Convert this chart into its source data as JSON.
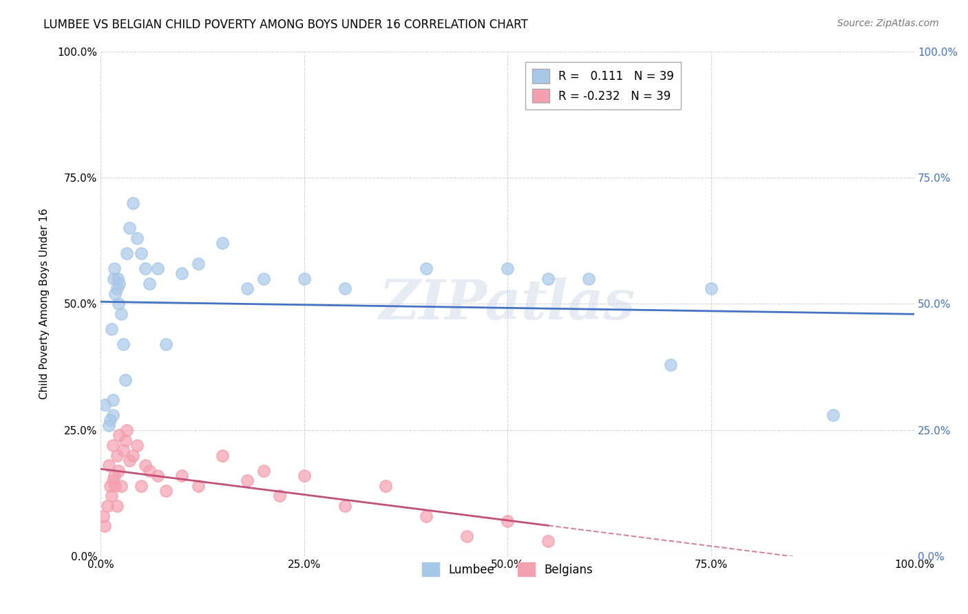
{
  "title": "LUMBEE VS BELGIAN CHILD POVERTY AMONG BOYS UNDER 16 CORRELATION CHART",
  "source": "Source: ZipAtlas.com",
  "xlabel": "",
  "ylabel": "Child Poverty Among Boys Under 16",
  "lumbee_R": 0.111,
  "belgians_R": -0.232,
  "N": 39,
  "watermark": "ZIPatlas",
  "lumbee_color": "#a8c8e8",
  "belgians_color": "#f4a0b0",
  "lumbee_line_color": "#4472c4",
  "belgians_line_color": "#c0507a",
  "background_color": "#ffffff",
  "grid_color": "#cccccc",
  "lumbee_x": [
    0.5,
    1.0,
    1.2,
    1.3,
    1.5,
    1.5,
    1.6,
    1.7,
    1.8,
    2.0,
    2.1,
    2.2,
    2.3,
    2.5,
    2.8,
    3.0,
    3.2,
    3.5,
    4.0,
    4.5,
    5.0,
    5.5,
    6.0,
    7.0,
    8.0,
    10.0,
    12.0,
    15.0,
    18.0,
    20.0,
    25.0,
    30.0,
    40.0,
    50.0,
    55.0,
    60.0,
    70.0,
    75.0,
    90.0
  ],
  "lumbee_y": [
    30.0,
    26.0,
    27.0,
    45.0,
    28.0,
    31.0,
    55.0,
    57.0,
    52.0,
    53.0,
    55.0,
    50.0,
    54.0,
    48.0,
    42.0,
    35.0,
    60.0,
    65.0,
    70.0,
    63.0,
    60.0,
    57.0,
    54.0,
    57.0,
    42.0,
    56.0,
    58.0,
    62.0,
    53.0,
    55.0,
    55.0,
    53.0,
    57.0,
    57.0,
    55.0,
    55.0,
    38.0,
    53.0,
    28.0
  ],
  "belgians_x": [
    0.3,
    0.5,
    0.8,
    1.0,
    1.2,
    1.3,
    1.5,
    1.5,
    1.7,
    1.8,
    2.0,
    2.0,
    2.2,
    2.3,
    2.5,
    2.8,
    3.0,
    3.2,
    3.5,
    4.0,
    4.5,
    5.0,
    5.5,
    6.0,
    7.0,
    8.0,
    10.0,
    12.0,
    15.0,
    18.0,
    20.0,
    22.0,
    25.0,
    30.0,
    35.0,
    40.0,
    45.0,
    50.0,
    55.0
  ],
  "belgians_y": [
    8.0,
    6.0,
    10.0,
    18.0,
    14.0,
    12.0,
    15.0,
    22.0,
    16.0,
    14.0,
    10.0,
    20.0,
    17.0,
    24.0,
    14.0,
    21.0,
    23.0,
    25.0,
    19.0,
    20.0,
    22.0,
    14.0,
    18.0,
    17.0,
    16.0,
    13.0,
    16.0,
    14.0,
    20.0,
    15.0,
    17.0,
    12.0,
    16.0,
    10.0,
    14.0,
    8.0,
    4.0,
    7.0,
    3.0
  ],
  "xlim": [
    0.0,
    100.0
  ],
  "ylim": [
    0.0,
    100.0
  ],
  "xticks": [
    0.0,
    25.0,
    50.0,
    75.0,
    100.0
  ],
  "xtick_labels": [
    "0.0%",
    "25.0%",
    "50.0%",
    "75.0%",
    "100.0%"
  ],
  "yticks": [
    0.0,
    25.0,
    50.0,
    75.0,
    100.0
  ],
  "ytick_labels": [
    "0.0%",
    "25.0%",
    "50.0%",
    "75.0%",
    "100.0%"
  ],
  "right_ytick_labels": [
    "0.0%",
    "25.0%",
    "50.0%",
    "75.0%",
    "100.0%"
  ]
}
